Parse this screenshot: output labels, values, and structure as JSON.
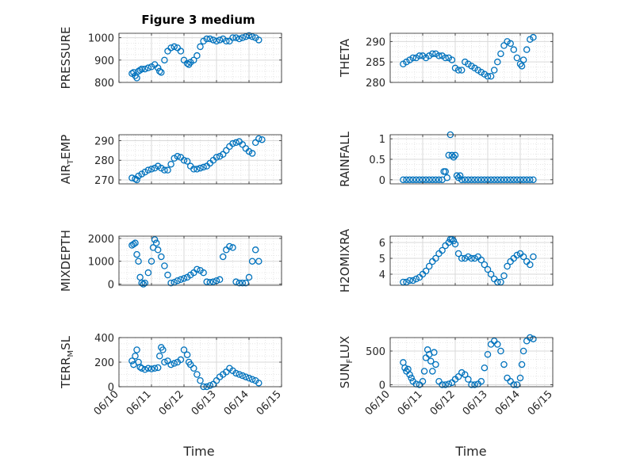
{
  "figure": {
    "title": "Figure 3 medium",
    "marker_color": "#0072bd",
    "axis_color": "#262626"
  },
  "chart_data": [
    {
      "type": "scatter",
      "id": "pressure",
      "title": "Figure 3 medium",
      "ylabel": "PRESSURE",
      "ylabel_sub": "",
      "ylabel_tail": "",
      "xlabel": "",
      "xlim": [
        0,
        5
      ],
      "ylim": [
        800,
        1020
      ],
      "yticks": [
        800,
        900,
        1000
      ],
      "xticks": [
        0,
        1,
        2,
        3,
        4,
        5
      ],
      "xtick_labels": [
        "06/10",
        "06/11",
        "06/12",
        "06/13",
        "06/14",
        "06/15"
      ],
      "show_xticklabels": false,
      "grid": true,
      "marker": "open-circle",
      "x": [
        0.4,
        0.45,
        0.5,
        0.55,
        0.6,
        0.65,
        0.7,
        0.8,
        0.9,
        1.0,
        1.1,
        1.2,
        1.25,
        1.3,
        1.4,
        1.5,
        1.6,
        1.7,
        1.8,
        1.9,
        2.0,
        2.1,
        2.15,
        2.2,
        2.3,
        2.4,
        2.5,
        2.6,
        2.7,
        2.8,
        2.9,
        3.0,
        3.1,
        3.2,
        3.3,
        3.4,
        3.5,
        3.6,
        3.7,
        3.8,
        3.9,
        4.0,
        4.1,
        4.2,
        4.3
      ],
      "y": [
        840,
        845,
        830,
        820,
        850,
        855,
        860,
        860,
        865,
        870,
        880,
        865,
        850,
        845,
        900,
        940,
        955,
        960,
        955,
        940,
        900,
        885,
        880,
        890,
        900,
        920,
        960,
        985,
        995,
        995,
        990,
        985,
        990,
        995,
        985,
        985,
        1000,
        1000,
        995,
        1000,
        1005,
        1010,
        1005,
        1000,
        990
      ]
    },
    {
      "type": "scatter",
      "id": "theta",
      "title": "",
      "ylabel": "THETA",
      "ylabel_sub": "",
      "ylabel_tail": "",
      "xlabel": "",
      "xlim": [
        0,
        5
      ],
      "ylim": [
        280,
        292
      ],
      "yticks": [
        280,
        285,
        290
      ],
      "xticks": [
        0,
        1,
        2,
        3,
        4,
        5
      ],
      "xtick_labels": [
        "06/10",
        "06/11",
        "06/12",
        "06/13",
        "06/14",
        "06/15"
      ],
      "show_xticklabels": false,
      "grid": true,
      "marker": "open-circle",
      "x": [
        0.4,
        0.5,
        0.6,
        0.7,
        0.8,
        0.9,
        1.0,
        1.1,
        1.2,
        1.3,
        1.4,
        1.5,
        1.6,
        1.7,
        1.8,
        1.9,
        2.0,
        2.1,
        2.2,
        2.3,
        2.4,
        2.5,
        2.6,
        2.7,
        2.8,
        2.9,
        3.0,
        3.1,
        3.2,
        3.3,
        3.4,
        3.5,
        3.6,
        3.7,
        3.8,
        3.9,
        4.0,
        4.05,
        4.1,
        4.2,
        4.3,
        4.4
      ],
      "y": [
        284.5,
        285,
        285.5,
        286,
        286,
        286.5,
        286.5,
        286,
        286.5,
        287,
        287,
        286.5,
        286.5,
        286,
        286,
        285.5,
        283.5,
        283,
        283,
        285,
        284.5,
        284,
        283.5,
        283,
        282.5,
        282,
        281.5,
        281.5,
        283,
        285,
        287,
        289,
        290,
        289.5,
        288,
        286,
        284.5,
        284,
        285.5,
        288,
        290.5,
        291
      ]
    },
    {
      "type": "scatter",
      "id": "air_temp",
      "title": "",
      "ylabel": "AIR",
      "ylabel_sub": "T",
      "ylabel_tail": "EMP",
      "xlabel": "",
      "xlim": [
        0,
        5
      ],
      "ylim": [
        268,
        293
      ],
      "yticks": [
        270,
        280,
        290
      ],
      "xticks": [
        0,
        1,
        2,
        3,
        4,
        5
      ],
      "xtick_labels": [
        "06/10",
        "06/11",
        "06/12",
        "06/13",
        "06/14",
        "06/15"
      ],
      "show_xticklabels": false,
      "grid": true,
      "marker": "open-circle",
      "x": [
        0.4,
        0.5,
        0.55,
        0.6,
        0.7,
        0.8,
        0.9,
        1.0,
        1.1,
        1.2,
        1.3,
        1.4,
        1.5,
        1.6,
        1.7,
        1.8,
        1.9,
        2.0,
        2.1,
        2.2,
        2.3,
        2.4,
        2.5,
        2.6,
        2.7,
        2.8,
        2.9,
        3.0,
        3.1,
        3.2,
        3.3,
        3.4,
        3.5,
        3.6,
        3.7,
        3.8,
        3.9,
        4.0,
        4.1,
        4.2,
        4.3,
        4.4
      ],
      "y": [
        271,
        270.5,
        270,
        272,
        273,
        274,
        275,
        275.5,
        276,
        277,
        276,
        275,
        275,
        278,
        281,
        282,
        281.5,
        280,
        279.5,
        277,
        275.5,
        275.5,
        276,
        276.5,
        277,
        278.5,
        280,
        281.5,
        282,
        283,
        285,
        287,
        288.5,
        289,
        289.5,
        288,
        286,
        284.5,
        283.5,
        289,
        291,
        290.5
      ]
    },
    {
      "type": "scatter",
      "id": "rainfall",
      "title": "",
      "ylabel": "RAINFALL",
      "ylabel_sub": "",
      "ylabel_tail": "",
      "xlabel": "",
      "xlim": [
        0,
        5
      ],
      "ylim": [
        -0.1,
        1.1
      ],
      "yticks": [
        0,
        0.5,
        1
      ],
      "xticks": [
        0,
        1,
        2,
        3,
        4,
        5
      ],
      "xtick_labels": [
        "06/10",
        "06/11",
        "06/12",
        "06/13",
        "06/14",
        "06/15"
      ],
      "show_xticklabels": false,
      "grid": true,
      "marker": "open-circle",
      "x": [
        0.4,
        0.5,
        0.6,
        0.7,
        0.8,
        0.9,
        1.0,
        1.1,
        1.2,
        1.3,
        1.4,
        1.5,
        1.6,
        1.65,
        1.7,
        1.75,
        1.8,
        1.85,
        1.9,
        1.95,
        2.0,
        2.05,
        2.1,
        2.15,
        2.2,
        2.3,
        2.4,
        2.5,
        2.6,
        2.7,
        2.8,
        2.9,
        3.0,
        3.1,
        3.2,
        3.3,
        3.4,
        3.5,
        3.6,
        3.7,
        3.8,
        3.9,
        4.0,
        4.1,
        4.2,
        4.3,
        4.4
      ],
      "y": [
        0,
        0,
        0,
        0,
        0,
        0,
        0,
        0,
        0,
        0,
        0,
        0,
        0,
        0.2,
        0.2,
        0.05,
        0.6,
        1.1,
        0.6,
        0.55,
        0.6,
        0.1,
        0.05,
        0.1,
        0,
        0,
        0,
        0,
        0,
        0,
        0,
        0,
        0,
        0,
        0,
        0,
        0,
        0,
        0,
        0,
        0,
        0,
        0,
        0,
        0,
        0,
        0
      ]
    },
    {
      "type": "scatter",
      "id": "mixdepth",
      "title": "",
      "ylabel": "MIXDEPTH",
      "ylabel_sub": "",
      "ylabel_tail": "",
      "xlabel": "",
      "xlim": [
        0,
        5
      ],
      "ylim": [
        -50,
        2100
      ],
      "yticks": [
        0,
        1000,
        2000
      ],
      "xticks": [
        0,
        1,
        2,
        3,
        4,
        5
      ],
      "xtick_labels": [
        "06/10",
        "06/11",
        "06/12",
        "06/13",
        "06/14",
        "06/15"
      ],
      "show_xticklabels": false,
      "grid": true,
      "marker": "open-circle",
      "x": [
        0.4,
        0.45,
        0.5,
        0.55,
        0.6,
        0.65,
        0.7,
        0.75,
        0.8,
        0.9,
        1.0,
        1.05,
        1.1,
        1.15,
        1.2,
        1.3,
        1.4,
        1.5,
        1.6,
        1.7,
        1.8,
        1.9,
        2.0,
        2.1,
        2.2,
        2.3,
        2.4,
        2.5,
        2.6,
        2.7,
        2.8,
        2.9,
        3.0,
        3.1,
        3.2,
        3.3,
        3.4,
        3.5,
        3.6,
        3.7,
        3.8,
        3.9,
        4.0,
        4.1,
        4.2,
        4.3
      ],
      "y": [
        1700,
        1750,
        1800,
        1300,
        1000,
        300,
        50,
        0,
        50,
        500,
        1000,
        1600,
        1950,
        1800,
        1500,
        1200,
        800,
        400,
        50,
        80,
        150,
        200,
        250,
        300,
        400,
        500,
        650,
        600,
        500,
        100,
        80,
        100,
        150,
        200,
        1200,
        1500,
        1650,
        1600,
        100,
        50,
        50,
        50,
        300,
        1000,
        1500,
        1000
      ]
    },
    {
      "type": "scatter",
      "id": "h2omixra",
      "title": "",
      "ylabel": "H2OMIXRA",
      "ylabel_sub": "",
      "ylabel_tail": "",
      "xlabel": "",
      "xlim": [
        0,
        5
      ],
      "ylim": [
        3.3,
        6.4
      ],
      "yticks": [
        4,
        5,
        6
      ],
      "xticks": [
        0,
        1,
        2,
        3,
        4,
        5
      ],
      "xtick_labels": [
        "06/10",
        "06/11",
        "06/12",
        "06/13",
        "06/14",
        "06/15"
      ],
      "show_xticklabels": false,
      "grid": true,
      "marker": "open-circle",
      "x": [
        0.4,
        0.5,
        0.6,
        0.7,
        0.8,
        0.9,
        1.0,
        1.1,
        1.2,
        1.3,
        1.4,
        1.5,
        1.6,
        1.7,
        1.8,
        1.85,
        1.9,
        1.95,
        2.0,
        2.1,
        2.2,
        2.3,
        2.4,
        2.5,
        2.6,
        2.7,
        2.8,
        2.9,
        3.0,
        3.1,
        3.2,
        3.3,
        3.4,
        3.5,
        3.6,
        3.7,
        3.8,
        3.9,
        4.0,
        4.1,
        4.2,
        4.3,
        4.4
      ],
      "y": [
        3.5,
        3.5,
        3.6,
        3.6,
        3.7,
        3.8,
        4.0,
        4.2,
        4.5,
        4.8,
        5.0,
        5.3,
        5.5,
        5.8,
        6.0,
        6.2,
        6.2,
        6.1,
        5.9,
        5.3,
        5.0,
        5.0,
        5.1,
        5.0,
        5.0,
        5.1,
        4.9,
        4.6,
        4.3,
        4.0,
        3.7,
        3.5,
        3.5,
        3.9,
        4.5,
        4.8,
        5.0,
        5.2,
        5.3,
        5.1,
        4.8,
        4.6,
        5.1
      ]
    },
    {
      "type": "scatter",
      "id": "terr_msl",
      "title": "",
      "ylabel": "TERR",
      "ylabel_sub": "M",
      "ylabel_tail": "SL",
      "xlabel": "Time",
      "xlim": [
        0,
        5
      ],
      "ylim": [
        0,
        400
      ],
      "yticks": [
        0,
        200,
        400
      ],
      "xticks": [
        0,
        1,
        2,
        3,
        4,
        5
      ],
      "xtick_labels": [
        "06/10",
        "06/11",
        "06/12",
        "06/13",
        "06/14",
        "06/15"
      ],
      "show_xticklabels": true,
      "grid": true,
      "marker": "open-circle",
      "x": [
        0.4,
        0.45,
        0.5,
        0.55,
        0.6,
        0.65,
        0.7,
        0.8,
        0.9,
        1.0,
        1.1,
        1.2,
        1.25,
        1.3,
        1.35,
        1.4,
        1.5,
        1.6,
        1.7,
        1.8,
        1.9,
        2.0,
        2.1,
        2.15,
        2.2,
        2.3,
        2.4,
        2.5,
        2.6,
        2.7,
        2.8,
        2.9,
        3.0,
        3.1,
        3.2,
        3.3,
        3.4,
        3.5,
        3.6,
        3.7,
        3.8,
        3.9,
        4.0,
        4.1,
        4.2,
        4.3
      ],
      "y": [
        210,
        180,
        250,
        300,
        200,
        160,
        150,
        140,
        150,
        145,
        150,
        155,
        250,
        320,
        300,
        200,
        210,
        180,
        190,
        200,
        220,
        300,
        260,
        200,
        180,
        150,
        100,
        50,
        0,
        0,
        10,
        20,
        50,
        80,
        100,
        120,
        150,
        130,
        110,
        100,
        90,
        80,
        70,
        60,
        50,
        30
      ]
    },
    {
      "type": "scatter",
      "id": "sun_flux",
      "title": "",
      "ylabel": "SUN",
      "ylabel_sub": "F",
      "ylabel_tail": "LUX",
      "xlabel": "Time",
      "xlim": [
        0,
        5
      ],
      "ylim": [
        -30,
        700
      ],
      "yticks": [
        0,
        500
      ],
      "xticks": [
        0,
        1,
        2,
        3,
        4,
        5
      ],
      "xtick_labels": [
        "06/10",
        "06/11",
        "06/12",
        "06/13",
        "06/14",
        "06/15"
      ],
      "show_xticklabels": true,
      "grid": true,
      "marker": "open-circle",
      "x": [
        0.4,
        0.45,
        0.5,
        0.55,
        0.6,
        0.65,
        0.7,
        0.8,
        0.9,
        1.0,
        1.05,
        1.1,
        1.15,
        1.2,
        1.25,
        1.3,
        1.35,
        1.4,
        1.5,
        1.6,
        1.7,
        1.8,
        1.9,
        2.0,
        2.1,
        2.2,
        2.3,
        2.4,
        2.5,
        2.6,
        2.7,
        2.8,
        2.9,
        3.0,
        3.1,
        3.2,
        3.3,
        3.4,
        3.5,
        3.6,
        3.7,
        3.8,
        3.9,
        4.0,
        4.05,
        4.1,
        4.2,
        4.3,
        4.4
      ],
      "y": [
        330,
        250,
        200,
        230,
        150,
        100,
        50,
        10,
        0,
        50,
        200,
        400,
        520,
        450,
        350,
        200,
        480,
        300,
        50,
        0,
        0,
        10,
        30,
        80,
        120,
        180,
        150,
        80,
        0,
        0,
        10,
        50,
        250,
        450,
        600,
        650,
        600,
        500,
        300,
        100,
        50,
        0,
        0,
        100,
        300,
        500,
        650,
        700,
        680
      ]
    }
  ]
}
